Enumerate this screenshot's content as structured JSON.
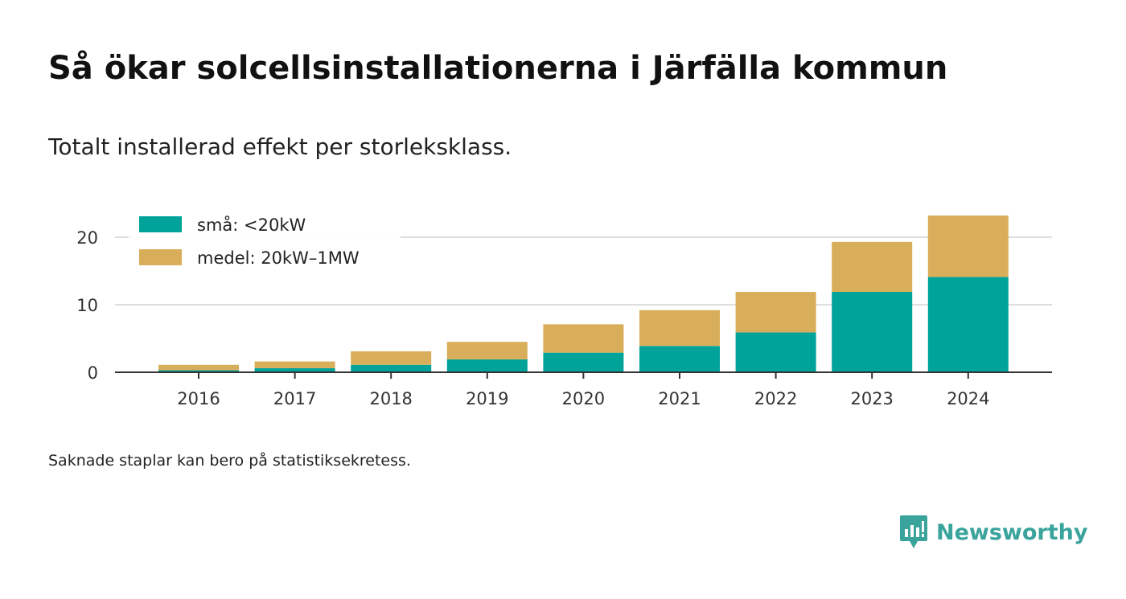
{
  "header": {
    "title": "Så ökar solcellsinstallationerna i Järfälla kommun",
    "subtitle": "Totalt installerad effekt per storleksklass."
  },
  "footer": {
    "note": "Saknade staplar kan bero på statistiksekretess.",
    "brand": "Newsworthy"
  },
  "colors": {
    "small": "#00a39a",
    "medium": "#d9ae5a",
    "brand": "#3aa39c"
  },
  "chart_data": {
    "type": "bar",
    "stacked": true,
    "categories": [
      "2016",
      "2017",
      "2018",
      "2019",
      "2020",
      "2021",
      "2022",
      "2023",
      "2024"
    ],
    "series": [
      {
        "name": "små: <20kW",
        "color": "#00a39a",
        "values": [
          0.3,
          0.6,
          1.1,
          1.9,
          2.9,
          3.9,
          5.9,
          11.9,
          14.1
        ]
      },
      {
        "name": "medel: 20kW–1MW",
        "color": "#d9ae5a",
        "values": [
          0.8,
          1.0,
          2.0,
          2.6,
          4.2,
          5.3,
          6.0,
          7.4,
          9.1
        ]
      }
    ],
    "y_ticks": [
      0,
      10,
      20
    ],
    "ylim": [
      0,
      25
    ],
    "grid": true,
    "legend_position": "top-left"
  }
}
